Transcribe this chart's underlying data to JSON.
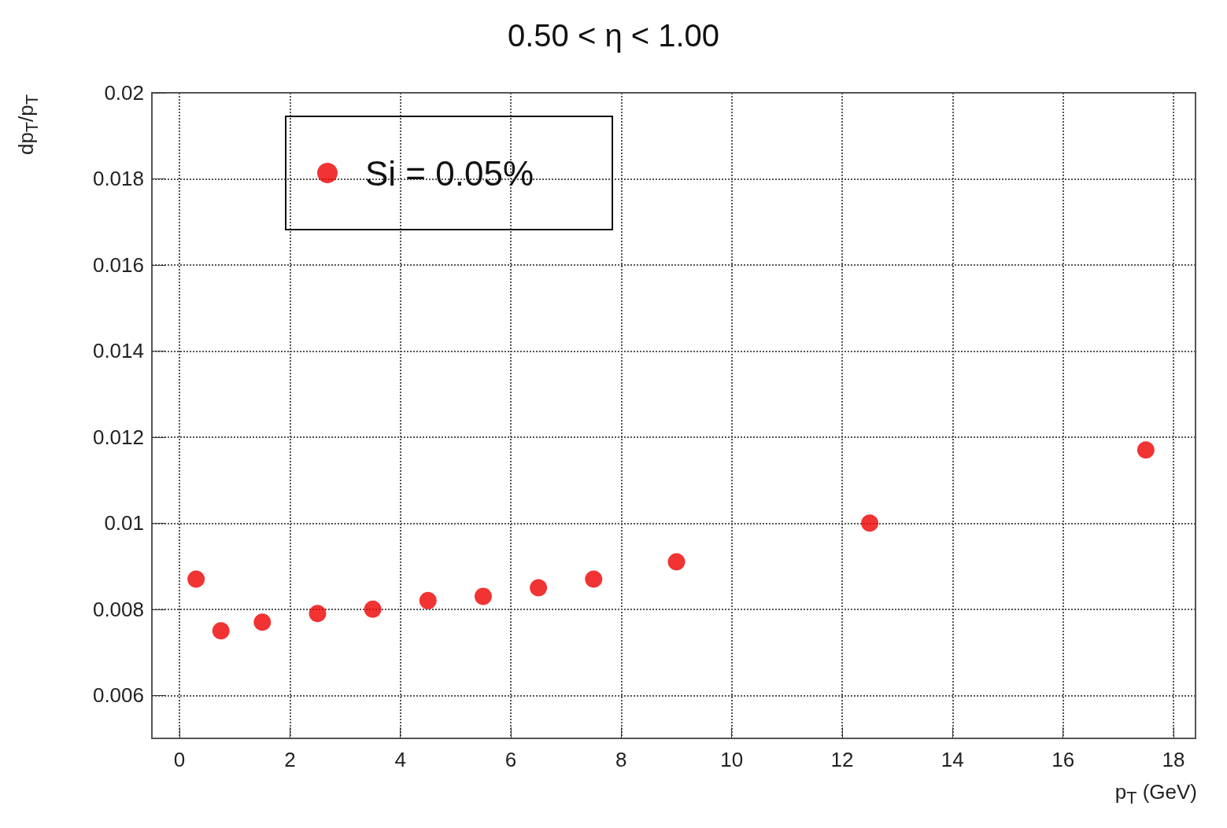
{
  "chart_data": {
    "type": "scatter",
    "title": "0.50 < η < 1.00",
    "xlabel": "p$_{T}$ (GeV)",
    "ylabel": "dp$_{T}$/p$_{T}$",
    "x": [
      0.3,
      0.75,
      1.5,
      2.5,
      3.5,
      4.5,
      5.5,
      6.5,
      7.5,
      9.0,
      12.5,
      17.5
    ],
    "series": [
      {
        "name": "Si = 0.05%",
        "color": "#ee0000",
        "values": [
          0.0087,
          0.0075,
          0.0077,
          0.0079,
          0.008,
          0.0082,
          0.0083,
          0.0085,
          0.0087,
          0.0091,
          0.01,
          0.0117
        ]
      }
    ],
    "xlim": [
      -0.5,
      18.4
    ],
    "xticks": [
      0,
      2,
      4,
      6,
      8,
      10,
      12,
      14,
      16,
      18
    ],
    "ylim": [
      0.005,
      0.02
    ],
    "yticks": [
      0.006,
      0.008,
      0.01,
      0.012,
      0.014,
      0.016,
      0.018,
      0.02
    ],
    "grid": true,
    "legend": "top left",
    "marker": "circle"
  }
}
